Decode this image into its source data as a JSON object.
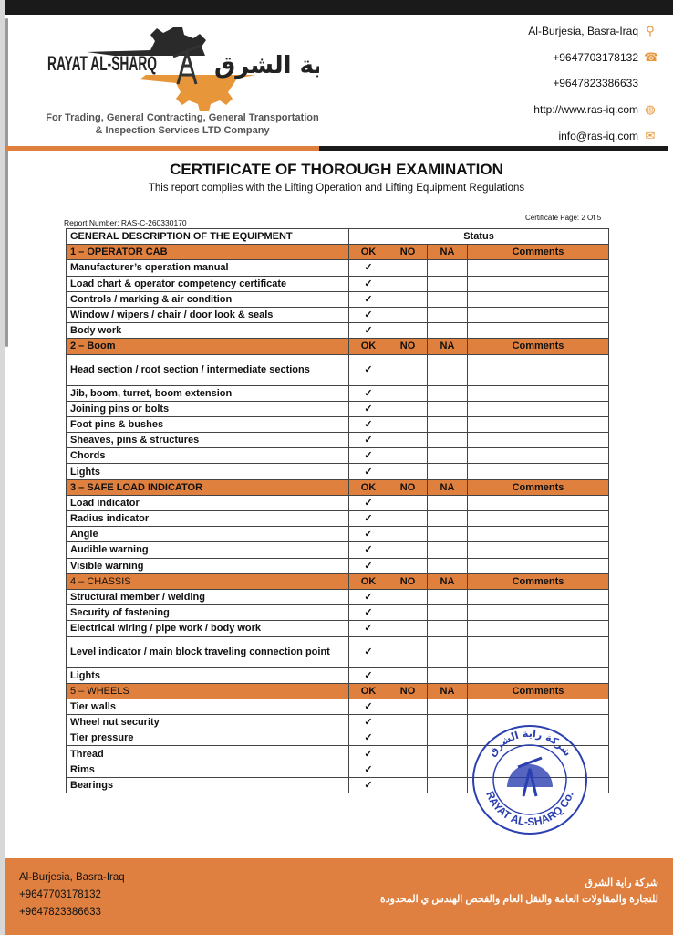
{
  "header": {
    "logo_en": "RAYAT AL-SHARQ",
    "logo_ar": "راية الشرق",
    "tagline1": "For Trading, General Contracting, General Transportation",
    "tagline2": "& Inspection Services LTD Company",
    "contact": [
      {
        "text": "Al-Burjesia, Basra-Iraq",
        "icon": "location-pin-icon"
      },
      {
        "text": "+9647703178132",
        "icon": "phone-icon"
      },
      {
        "text": "+9647823386633",
        "icon": ""
      },
      {
        "text": "http://www.ras-iq.com",
        "icon": "globe-icon"
      },
      {
        "text": "info@ras-iq.com",
        "icon": "envelope-icon"
      }
    ]
  },
  "title": "CERTIFICATE OF THOROUGH EXAMINATION",
  "subtitle": "This report complies with the Lifting Operation and Lifting Equipment Regulations",
  "report_number": "Report Number: RAS-C-260330170",
  "certificate_page": "Certificate Page: 2 Of 5",
  "table": {
    "header_desc": "GENERAL DESCRIPTION OF THE EQUIPMENT",
    "header_status": "Status",
    "cols": [
      "OK",
      "NO",
      "NA",
      "Comments"
    ],
    "check": "✓",
    "sections": [
      {
        "title": "1 – OPERATOR CAB",
        "bold": true,
        "items": [
          "Manufacturer’s operation manual",
          "Load chart & operator competency certificate",
          "Controls / marking & air condition",
          "Window / wipers / chair / door look & seals",
          "Body work"
        ]
      },
      {
        "title": "2 – Boom",
        "bold": true,
        "items": [
          "Head section / root section / intermediate sections",
          "Jib, boom, turret, boom extension",
          "Joining pins or bolts",
          "Foot pins & bushes",
          "Sheaves, pins & structures",
          "Chords",
          "Lights"
        ]
      },
      {
        "title": "3 – SAFE LOAD INDICATOR",
        "bold": true,
        "items": [
          "Load indicator",
          "Radius indicator",
          "Angle",
          "Audible warning",
          "Visible warning"
        ]
      },
      {
        "title": "4 – CHASSIS",
        "bold": false,
        "items": [
          "Structural member / welding",
          "Security of fastening",
          "Electrical wiring / pipe work / body work",
          "Level indicator / main block traveling connection point",
          "Lights"
        ]
      },
      {
        "title": "5 – WHEELS",
        "bold": false,
        "items": [
          "Tier walls",
          "Wheel nut security",
          "Tier pressure",
          "Thread",
          "Rims",
          "Bearings"
        ]
      }
    ]
  },
  "stamp": {
    "text_top": "شركة راية الشرق",
    "text_bottom": "RAYAT AL-SHARQ Co."
  },
  "footer": {
    "lines": [
      "Al-Burjesia, Basra-Iraq",
      "+9647703178132",
      "+9647823386633"
    ],
    "ar1": "شركة راية الشرق",
    "ar2": "للتجارة والمقاولات العامة والنقل العام والفحص الهندس ي المحدودة"
  },
  "colors": {
    "accent": "#e0803e",
    "dark": "#1a1a1a",
    "stamp": "#2a3fb0"
  }
}
